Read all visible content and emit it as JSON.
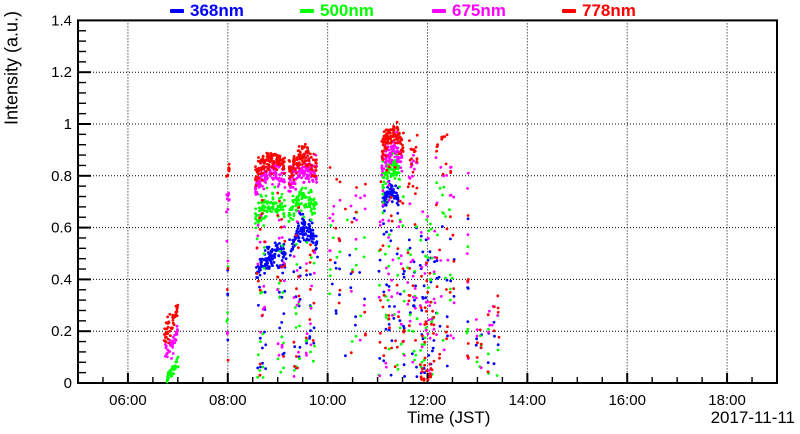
{
  "figure": {
    "background": "#ffffff",
    "y_label": "Intensity (a.u.)",
    "x_label": "Time (JST)",
    "date_label": "2017-11-11",
    "legend": {
      "items": [
        {
          "label": "368nm",
          "color": "#0000ff"
        },
        {
          "label": "500nm",
          "color": "#00ff00"
        },
        {
          "label": "675nm",
          "color": "#ff00ff"
        },
        {
          "label": "778nm",
          "color": "#ff0000"
        }
      ]
    }
  },
  "chart_data": {
    "type": "scatter",
    "title": "",
    "xlabel": "Time (JST)",
    "ylabel": "Intensity (a.u.)",
    "annotation": "2017-11-11",
    "x_axis": {
      "unit": "hour-of-day",
      "min": 5,
      "max": 19,
      "major_ticks": [
        6,
        8,
        10,
        12,
        14,
        16,
        18
      ],
      "major_tick_labels": [
        "06:00",
        "08:00",
        "10:00",
        "12:00",
        "14:00",
        "16:00",
        "18:00"
      ],
      "minor_step": 0.5,
      "grid": true
    },
    "y_axis": {
      "min": 0,
      "max": 1.4,
      "major_step": 0.2,
      "major_ticks": [
        0,
        0.2,
        0.4,
        0.6,
        0.8,
        1.0,
        1.2,
        1.4
      ],
      "major_tick_labels": [
        "0",
        "0.2",
        "0.4",
        "0.6",
        "0.8",
        "1",
        "1.2",
        "1.4"
      ],
      "minor_step": 0.04,
      "grid": true
    },
    "grid_style": "dotted-black",
    "legend_position": "top",
    "marker": {
      "shape": "dot",
      "radius_px": 1.4
    },
    "series": [
      {
        "name": "368nm",
        "color": "#0000ff",
        "bands": [
          {
            "t": [
              8.55,
              9.17
            ],
            "v": [
              0.4,
              0.5
            ],
            "peak": 0.04,
            "sd": 0.025,
            "n": 110
          },
          {
            "t": [
              9.22,
              9.8
            ],
            "v": [
              0.5,
              0.52
            ],
            "peak": 0.09,
            "sd": 0.025,
            "n": 105
          },
          {
            "t": [
              11.1,
              11.42
            ],
            "v": [
              0.69,
              0.7
            ],
            "peak": 0.05,
            "sd": 0.022,
            "n": 80
          }
        ],
        "scatter": [
          {
            "t": [
              7.98,
              8.02
            ],
            "v": [
              0.03,
              0.45
            ],
            "n": 4,
            "cols": 1
          },
          {
            "t": [
              8.58,
              8.76
            ],
            "v": [
              0.02,
              0.4
            ],
            "n": 12,
            "cols": 4
          },
          {
            "t": [
              8.98,
              9.15
            ],
            "v": [
              0.02,
              0.45
            ],
            "n": 12,
            "cols": 4
          },
          {
            "t": [
              9.3,
              9.46
            ],
            "v": [
              0.02,
              0.5
            ],
            "n": 10,
            "cols": 3
          },
          {
            "t": [
              9.55,
              9.76
            ],
            "v": [
              0.02,
              0.5
            ],
            "n": 10,
            "cols": 3
          },
          {
            "t": [
              10.02,
              10.26
            ],
            "v": [
              0.25,
              0.62
            ],
            "n": 7,
            "cols": 4
          },
          {
            "t": [
              10.33,
              10.8
            ],
            "v": [
              0.1,
              0.64
            ],
            "n": 9,
            "cols": 5
          },
          {
            "t": [
              11.02,
              11.55
            ],
            "v": [
              0.02,
              0.62
            ],
            "n": 30,
            "cols": 9
          },
          {
            "t": [
              11.6,
              11.8
            ],
            "v": [
              0.02,
              0.6
            ],
            "n": 14,
            "cols": 5
          },
          {
            "t": [
              11.85,
              12.15
            ],
            "v": [
              0.02,
              0.6
            ],
            "n": 26,
            "cols": 8
          },
          {
            "t": [
              12.15,
              12.55
            ],
            "v": [
              0.05,
              0.62
            ],
            "n": 14,
            "cols": 6
          },
          {
            "t": [
              12.78,
              12.83
            ],
            "v": [
              0.1,
              0.75
            ],
            "n": 4,
            "cols": 1
          },
          {
            "t": [
              12.95,
              13.1
            ],
            "v": [
              0.03,
              0.2
            ],
            "n": 4,
            "cols": 2
          },
          {
            "t": [
              13.18,
              13.45
            ],
            "v": [
              0.02,
              0.3
            ],
            "n": 6,
            "cols": 3
          }
        ]
      },
      {
        "name": "500nm",
        "color": "#00ff00",
        "bands": [
          {
            "t": [
              6.78,
              7.02
            ],
            "v": [
              0.02,
              0.08
            ],
            "peak": 0,
            "sd": 0.012,
            "n": 40
          },
          {
            "t": [
              8.55,
              9.15
            ],
            "v": [
              0.62,
              0.66
            ],
            "peak": 0.05,
            "sd": 0.025,
            "n": 100
          },
          {
            "t": [
              9.22,
              9.78
            ],
            "v": [
              0.65,
              0.67
            ],
            "peak": 0.05,
            "sd": 0.025,
            "n": 100
          },
          {
            "t": [
              11.1,
              11.45
            ],
            "v": [
              0.78,
              0.8
            ],
            "peak": 0.05,
            "sd": 0.025,
            "n": 75
          }
        ],
        "scatter": [
          {
            "t": [
              7.98,
              8.02
            ],
            "v": [
              0.18,
              0.55
            ],
            "n": 4,
            "cols": 1
          },
          {
            "t": [
              8.58,
              8.76
            ],
            "v": [
              0.02,
              0.55
            ],
            "n": 12,
            "cols": 4
          },
          {
            "t": [
              8.98,
              9.15
            ],
            "v": [
              0.02,
              0.55
            ],
            "n": 12,
            "cols": 4
          },
          {
            "t": [
              9.3,
              9.46
            ],
            "v": [
              0.02,
              0.58
            ],
            "n": 10,
            "cols": 3
          },
          {
            "t": [
              9.55,
              9.76
            ],
            "v": [
              0.02,
              0.58
            ],
            "n": 10,
            "cols": 3
          },
          {
            "t": [
              10.02,
              10.26
            ],
            "v": [
              0.3,
              0.68
            ],
            "n": 7,
            "cols": 4
          },
          {
            "t": [
              10.33,
              10.8
            ],
            "v": [
              0.1,
              0.7
            ],
            "n": 10,
            "cols": 5
          },
          {
            "t": [
              11.02,
              11.55
            ],
            "v": [
              0.02,
              0.72
            ],
            "n": 30,
            "cols": 9
          },
          {
            "t": [
              11.6,
              11.8
            ],
            "v": [
              0.05,
              0.7
            ],
            "n": 14,
            "cols": 5
          },
          {
            "t": [
              11.85,
              12.15
            ],
            "v": [
              0.02,
              0.65
            ],
            "n": 26,
            "cols": 8
          },
          {
            "t": [
              12.15,
              12.55
            ],
            "v": [
              0.05,
              0.8
            ],
            "n": 16,
            "cols": 6
          },
          {
            "t": [
              12.78,
              12.83
            ],
            "v": [
              0.15,
              0.8
            ],
            "n": 4,
            "cols": 1
          },
          {
            "t": [
              12.95,
              13.1
            ],
            "v": [
              0.03,
              0.22
            ],
            "n": 4,
            "cols": 2
          },
          {
            "t": [
              13.18,
              13.45
            ],
            "v": [
              0.02,
              0.28
            ],
            "n": 6,
            "cols": 3
          }
        ]
      },
      {
        "name": "675nm",
        "color": "#ff00ff",
        "bands": [
          {
            "t": [
              6.74,
              7.0
            ],
            "v": [
              0.1,
              0.2
            ],
            "peak": 0,
            "sd": 0.02,
            "n": 35
          },
          {
            "t": [
              7.97,
              8.03
            ],
            "v": [
              0.68,
              0.74
            ],
            "peak": 0,
            "sd": 0.02,
            "n": 9
          },
          {
            "t": [
              8.55,
              9.15
            ],
            "v": [
              0.75,
              0.79
            ],
            "peak": 0.04,
            "sd": 0.022,
            "n": 110
          },
          {
            "t": [
              9.22,
              9.78
            ],
            "v": [
              0.76,
              0.79
            ],
            "peak": 0.05,
            "sd": 0.022,
            "n": 100
          },
          {
            "t": [
              11.08,
              11.5
            ],
            "v": [
              0.84,
              0.86
            ],
            "peak": 0.05,
            "sd": 0.025,
            "n": 90
          },
          {
            "t": [
              11.63,
              11.8
            ],
            "v": [
              0.82,
              0.86
            ],
            "peak": 0,
            "sd": 0.04,
            "n": 12
          }
        ],
        "scatter": [
          {
            "t": [
              7.98,
              8.02
            ],
            "v": [
              0.1,
              0.62
            ],
            "n": 4,
            "cols": 1
          },
          {
            "t": [
              8.58,
              8.76
            ],
            "v": [
              0.02,
              0.7
            ],
            "n": 12,
            "cols": 4
          },
          {
            "t": [
              8.98,
              9.15
            ],
            "v": [
              0.02,
              0.7
            ],
            "n": 12,
            "cols": 4
          },
          {
            "t": [
              9.3,
              9.46
            ],
            "v": [
              0.02,
              0.7
            ],
            "n": 10,
            "cols": 3
          },
          {
            "t": [
              9.55,
              9.76
            ],
            "v": [
              0.02,
              0.7
            ],
            "n": 10,
            "cols": 3
          },
          {
            "t": [
              10.02,
              10.26
            ],
            "v": [
              0.3,
              0.84
            ],
            "n": 8,
            "cols": 4
          },
          {
            "t": [
              10.33,
              10.8
            ],
            "v": [
              0.15,
              0.84
            ],
            "n": 10,
            "cols": 5
          },
          {
            "t": [
              11.02,
              11.55
            ],
            "v": [
              0.02,
              0.78
            ],
            "n": 30,
            "cols": 9
          },
          {
            "t": [
              11.6,
              11.8
            ],
            "v": [
              0.02,
              0.75
            ],
            "n": 12,
            "cols": 5
          },
          {
            "t": [
              11.85,
              12.15
            ],
            "v": [
              0.02,
              0.7
            ],
            "n": 26,
            "cols": 8
          },
          {
            "t": [
              12.15,
              12.55
            ],
            "v": [
              0.1,
              0.93
            ],
            "n": 18,
            "cols": 6
          },
          {
            "t": [
              12.78,
              12.84
            ],
            "v": [
              0.05,
              0.95
            ],
            "n": 6,
            "cols": 1
          },
          {
            "t": [
              12.95,
              13.1
            ],
            "v": [
              0.05,
              0.28
            ],
            "n": 4,
            "cols": 2
          },
          {
            "t": [
              13.18,
              13.45
            ],
            "v": [
              0.03,
              0.3
            ],
            "n": 6,
            "cols": 3
          }
        ]
      },
      {
        "name": "778nm",
        "color": "#ff0000",
        "bands": [
          {
            "t": [
              6.72,
              7.0
            ],
            "v": [
              0.17,
              0.29
            ],
            "peak": 0,
            "sd": 0.022,
            "n": 45
          },
          {
            "t": [
              7.97,
              8.03
            ],
            "v": [
              0.79,
              0.83
            ],
            "peak": 0,
            "sd": 0.015,
            "n": 10
          },
          {
            "t": [
              8.55,
              9.15
            ],
            "v": [
              0.8,
              0.84
            ],
            "peak": 0.045,
            "sd": 0.022,
            "n": 120
          },
          {
            "t": [
              9.22,
              9.78
            ],
            "v": [
              0.8,
              0.83
            ],
            "peak": 0.06,
            "sd": 0.022,
            "n": 110
          },
          {
            "t": [
              11.08,
              11.52
            ],
            "v": [
              0.9,
              0.92
            ],
            "peak": 0.045,
            "sd": 0.025,
            "n": 110
          },
          {
            "t": [
              11.63,
              11.8
            ],
            "v": [
              0.86,
              0.9
            ],
            "peak": 0,
            "sd": 0.04,
            "n": 14
          },
          {
            "t": [
              12.15,
              12.4
            ],
            "v": [
              0.92,
              0.94
            ],
            "peak": 0,
            "sd": 0.025,
            "n": 12
          }
        ],
        "scatter": [
          {
            "t": [
              7.98,
              8.02
            ],
            "v": [
              0.05,
              0.6
            ],
            "n": 3,
            "cols": 1
          },
          {
            "t": [
              8.58,
              8.76
            ],
            "v": [
              0.02,
              0.75
            ],
            "n": 12,
            "cols": 4
          },
          {
            "t": [
              8.98,
              9.15
            ],
            "v": [
              0.02,
              0.75
            ],
            "n": 12,
            "cols": 4
          },
          {
            "t": [
              9.3,
              9.46
            ],
            "v": [
              0.02,
              0.75
            ],
            "n": 10,
            "cols": 3
          },
          {
            "t": [
              9.55,
              9.76
            ],
            "v": [
              0.02,
              0.75
            ],
            "n": 10,
            "cols": 3
          },
          {
            "t": [
              10.02,
              10.26
            ],
            "v": [
              0.25,
              0.88
            ],
            "n": 9,
            "cols": 4
          },
          {
            "t": [
              10.33,
              10.8
            ],
            "v": [
              0.1,
              0.88
            ],
            "n": 10,
            "cols": 5
          },
          {
            "t": [
              11.02,
              11.55
            ],
            "v": [
              0.02,
              0.85
            ],
            "n": 32,
            "cols": 9
          },
          {
            "t": [
              11.6,
              11.8
            ],
            "v": [
              0.02,
              0.8
            ],
            "n": 14,
            "cols": 5
          },
          {
            "t": [
              11.85,
              12.15
            ],
            "v": [
              0.01,
              0.5
            ],
            "n": 40,
            "cols": 8,
            "pow": 2.2
          },
          {
            "t": [
              12.15,
              12.55
            ],
            "v": [
              0.05,
              0.9
            ],
            "n": 20,
            "cols": 6
          },
          {
            "t": [
              12.78,
              12.84
            ],
            "v": [
              0.05,
              0.93
            ],
            "n": 6,
            "cols": 1
          },
          {
            "t": [
              12.95,
              13.1
            ],
            "v": [
              0.03,
              0.25
            ],
            "n": 5,
            "cols": 2
          },
          {
            "t": [
              13.18,
              13.45
            ],
            "v": [
              0.02,
              0.35
            ],
            "n": 8,
            "cols": 3
          }
        ]
      }
    ]
  }
}
